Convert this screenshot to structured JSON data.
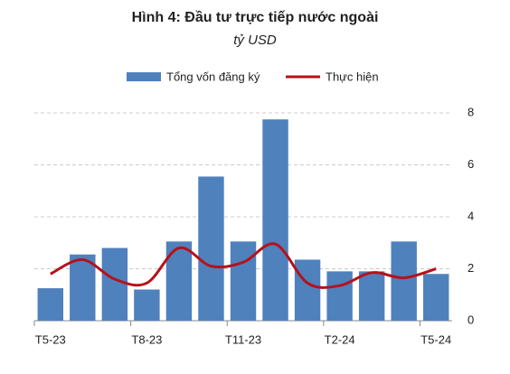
{
  "chart_data": {
    "type": "bar-line",
    "title": "Hình 4: Đầu tư trực tiếp nước ngoài",
    "subtitle": "tỷ USD",
    "categories": [
      "T5-23",
      null,
      null,
      "T8-23",
      null,
      null,
      "T11-23",
      null,
      null,
      "T2-24",
      null,
      null,
      "T5-24"
    ],
    "series": [
      {
        "name": "Tổng vốn đăng ký",
        "type": "bar",
        "color": "#4f81bd",
        "values": [
          1.25,
          2.55,
          2.8,
          1.2,
          3.05,
          5.55,
          3.05,
          7.75,
          2.35,
          1.9,
          1.9,
          3.05,
          1.8
        ]
      },
      {
        "name": "Thực hiện",
        "type": "line",
        "color": "#b5121b",
        "values": [
          1.8,
          2.35,
          1.6,
          1.45,
          2.8,
          2.1,
          2.25,
          2.95,
          1.45,
          1.35,
          1.85,
          1.65,
          2.0
        ]
      }
    ],
    "ylim": [
      0,
      8
    ],
    "yticks": [
      0,
      2,
      4,
      6,
      8
    ],
    "grid": true,
    "legend": "top"
  }
}
